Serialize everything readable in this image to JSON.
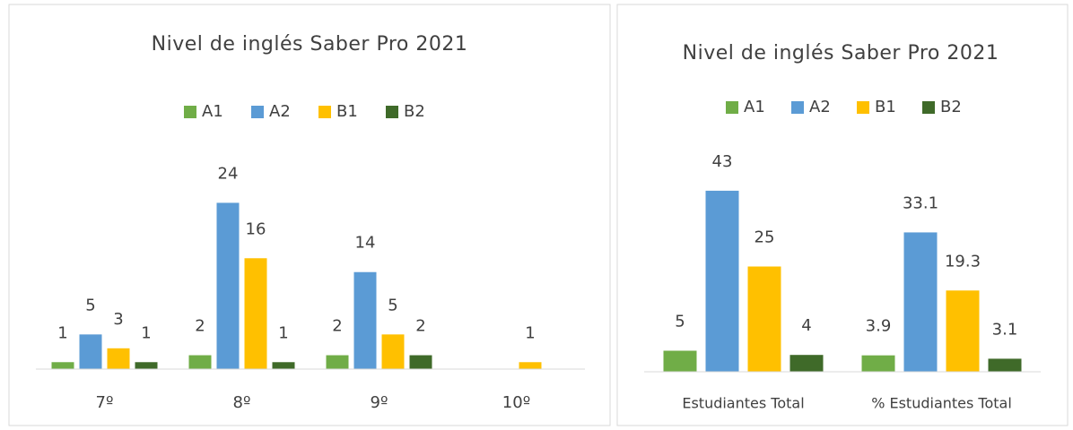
{
  "chart_data": [
    {
      "type": "bar",
      "title": "Nivel de inglés Saber Pro 2021",
      "categories": [
        "7º",
        "8º",
        "9º",
        "10º"
      ],
      "series": [
        {
          "name": "A1",
          "color": "#70ad47",
          "values": [
            1,
            2,
            2,
            null
          ]
        },
        {
          "name": "A2",
          "color": "#5b9bd5",
          "values": [
            5,
            24,
            14,
            null
          ]
        },
        {
          "name": "B1",
          "color": "#ffc000",
          "values": [
            3,
            16,
            5,
            1
          ]
        },
        {
          "name": "B2",
          "color": "#3f6a29",
          "values": [
            1,
            1,
            2,
            null
          ]
        }
      ],
      "ylim": [
        0,
        30
      ]
    },
    {
      "type": "bar",
      "title": "Nivel de inglés Saber Pro 2021",
      "categories": [
        "Estudiantes Total",
        "% Estudiantes Total"
      ],
      "series": [
        {
          "name": "A1",
          "color": "#70ad47",
          "values": [
            5,
            3.9
          ]
        },
        {
          "name": "A2",
          "color": "#5b9bd5",
          "values": [
            43,
            33.1
          ]
        },
        {
          "name": "B1",
          "color": "#ffc000",
          "values": [
            25,
            19.3
          ]
        },
        {
          "name": "B2",
          "color": "#3f6a29",
          "values": [
            4,
            3.1
          ]
        }
      ],
      "ylim": [
        0,
        50
      ]
    }
  ]
}
